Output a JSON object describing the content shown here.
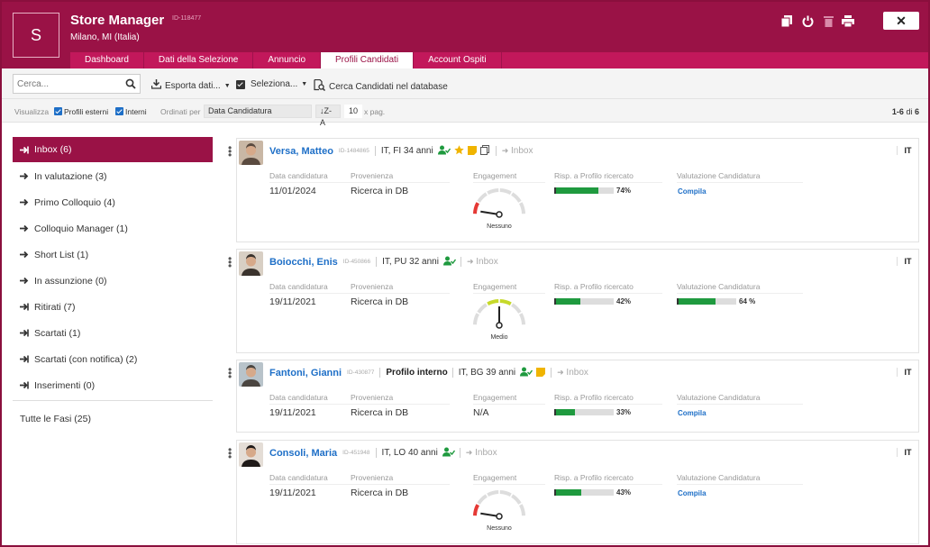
{
  "header": {
    "logo_letter": "S",
    "title": "Store Manager",
    "id": "ID-118477",
    "location": "Milano, MI (Italia)",
    "icons": [
      "copy-icon",
      "power-icon",
      "trash-icon",
      "print-icon"
    ],
    "close_label": "✕"
  },
  "tabs": [
    {
      "label": "Dashboard",
      "active": false
    },
    {
      "label": "Dati della Selezione",
      "active": false
    },
    {
      "label": "Annuncio",
      "active": false
    },
    {
      "label": "Profili Candidati",
      "active": true
    },
    {
      "label": "Account Ospiti",
      "active": false
    }
  ],
  "toolbar": {
    "search_placeholder": "Cerca...",
    "export_label": "Esporta dati...",
    "select_label": "Seleziona...",
    "db_search_label": "Cerca Candidati nel database"
  },
  "filters": {
    "view_label": "Visualizza",
    "external_label": "Profili esterni",
    "internal_label": "Interni",
    "order_label": "Ordinati per",
    "order_value": "Data Candidatura",
    "sort_dir": "↓Z-A",
    "per_page": "10",
    "per_page_suffix": "x pag.",
    "pager_range": "1-6",
    "pager_of": "di",
    "pager_total": "6"
  },
  "sidebar": {
    "items": [
      {
        "label": "Inbox (6)",
        "active": true,
        "icon": "inbox-arrow-icon"
      },
      {
        "label": "In valutazione (3)",
        "active": false,
        "icon": "arrow-right-icon"
      },
      {
        "label": "Primo Colloquio (4)",
        "active": false,
        "icon": "arrow-right-icon"
      },
      {
        "label": "Colloquio Manager (1)",
        "active": false,
        "icon": "arrow-right-icon"
      },
      {
        "label": "Short List (1)",
        "active": false,
        "icon": "arrow-right-icon"
      },
      {
        "label": "In assunzione (0)",
        "active": false,
        "icon": "arrow-right-icon"
      },
      {
        "label": "Ritirati (7)",
        "active": false,
        "icon": "arrow-bar-icon"
      },
      {
        "label": "Scartati (1)",
        "active": false,
        "icon": "arrow-bar-icon"
      },
      {
        "label": "Scartati (con notifica) (2)",
        "active": false,
        "icon": "arrow-bar-icon"
      },
      {
        "label": "Inserimenti (0)",
        "active": false,
        "icon": "arrow-bar-icon"
      }
    ],
    "all_label": "Tutte le Fasi (25)"
  },
  "columns": {
    "date": "Data candidatura",
    "source": "Provenienza",
    "engagement": "Engagement",
    "match": "Risp. a Profilo ricercato",
    "rating": "Valutazione Candidatura"
  },
  "candidates": [
    {
      "name": "Versa, Matteo",
      "id": "ID-1484865",
      "internal": "",
      "info": "IT, FI 34 anni",
      "inbox": "Inbox",
      "lang": "IT",
      "date": "11/01/2024",
      "source": "Ricerca in DB",
      "engagement": "",
      "gauge_label": "Nessuno",
      "gauge_level": 0.05,
      "match_pct": 74,
      "match_label": "74%",
      "rating_pct": null,
      "rating_label": "",
      "compila": "Compila",
      "badges": [
        "user-check-icon",
        "star-icon",
        "note-icon",
        "copy-icon"
      ]
    },
    {
      "name": "Boiocchi, Enis",
      "id": "ID-450866",
      "internal": "",
      "info": "IT, PU 32 anni",
      "inbox": "Inbox",
      "lang": "IT",
      "date": "19/11/2021",
      "source": "Ricerca in DB",
      "engagement": "",
      "gauge_label": "Medio",
      "gauge_level": 0.5,
      "match_pct": 42,
      "match_label": "42%",
      "rating_pct": 64,
      "rating_label": "64 %",
      "compila": "",
      "badges": [
        "user-check-icon"
      ]
    },
    {
      "name": "Fantoni, Gianni",
      "id": "ID-430877",
      "internal": "Profilo interno",
      "info": "IT, BG 39 anni",
      "inbox": "Inbox",
      "lang": "IT",
      "date": "19/11/2021",
      "source": "Ricerca in DB",
      "engagement": "N/A",
      "gauge_label": "",
      "gauge_level": null,
      "match_pct": 33,
      "match_label": "33%",
      "rating_pct": null,
      "rating_label": "",
      "compila": "Compila",
      "badges": [
        "user-check-icon",
        "note-icon"
      ]
    },
    {
      "name": "Consoli, Maria",
      "id": "ID-451948",
      "internal": "",
      "info": "IT, LO 40 anni",
      "inbox": "Inbox",
      "lang": "IT",
      "date": "19/11/2021",
      "source": "Ricerca in DB",
      "engagement": "",
      "gauge_label": "Nessuno",
      "gauge_level": 0.05,
      "match_pct": 43,
      "match_label": "43%",
      "rating_pct": null,
      "rating_label": "",
      "compila": "Compila",
      "badges": [
        "user-check-icon"
      ]
    }
  ],
  "colors": {
    "brand": "#9a1246",
    "tab": "#c2185b",
    "link": "#1e6fc7",
    "bar": "#1f9a3f"
  }
}
